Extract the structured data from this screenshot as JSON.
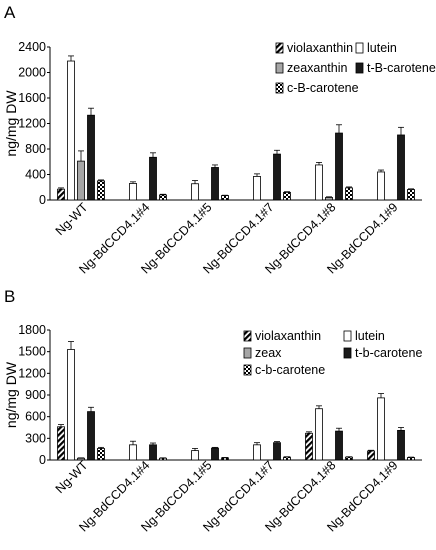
{
  "chart_data": [
    {
      "type": "bar",
      "panel_label": "A",
      "ylabel": "ng/mg DW",
      "ylim": [
        0,
        2400
      ],
      "yticks": [
        "0",
        "400",
        "800",
        "1200",
        "1600",
        "2000",
        "2400"
      ],
      "categories": [
        "Ng-WT",
        "Ng-BdCCD4.1#4",
        "Ng-BdCCD4.1#5",
        "Ng-BdCCD4.1#7",
        "Ng-BdCCD4.1#8",
        "Ng-BdCCD4.1#9"
      ],
      "legend_position": "top-right",
      "grid": false,
      "series": [
        {
          "name": "violaxanthin",
          "pattern": "hatch",
          "values": [
            170,
            0,
            0,
            0,
            0,
            0
          ],
          "errors": [
            20,
            0,
            0,
            0,
            0,
            0
          ]
        },
        {
          "name": "lutein",
          "pattern": "white",
          "values": [
            2180,
            260,
            255,
            370,
            550,
            440
          ],
          "errors": [
            80,
            25,
            50,
            40,
            40,
            30
          ]
        },
        {
          "name": "zeaxanthin",
          "pattern": "gray",
          "values": [
            610,
            0,
            0,
            0,
            40,
            0
          ],
          "errors": [
            160,
            0,
            0,
            0,
            10,
            0
          ]
        },
        {
          "name": "t-B-carotene",
          "pattern": "black",
          "values": [
            1330,
            670,
            510,
            720,
            1050,
            1020
          ],
          "errors": [
            110,
            70,
            40,
            60,
            130,
            120
          ]
        },
        {
          "name": "c-B-carotene",
          "pattern": "check",
          "values": [
            300,
            80,
            70,
            120,
            190,
            165
          ],
          "errors": [
            15,
            10,
            5,
            10,
            15,
            10
          ]
        }
      ]
    },
    {
      "type": "bar",
      "panel_label": "B",
      "ylabel": "ng/mg DW",
      "ylim": [
        0,
        1800
      ],
      "yticks": [
        "0",
        "300",
        "600",
        "900",
        "1200",
        "1500",
        "1800"
      ],
      "categories": [
        "Ng-WT",
        "Ng-BdCCD4.1#4",
        "Ng-BdCCD4.1#5",
        "Ng-BdCCD4.1#7",
        "Ng-BdCCD4.1#8",
        "Ng-BdCCD4.1#9"
      ],
      "legend_position": "top-right",
      "grid": false,
      "series": [
        {
          "name": "violaxanthin",
          "pattern": "hatch",
          "values": [
            460,
            0,
            0,
            0,
            370,
            125
          ],
          "errors": [
            30,
            0,
            0,
            0,
            20,
            10
          ]
        },
        {
          "name": "lutein",
          "pattern": "white",
          "values": [
            1530,
            210,
            130,
            210,
            710,
            860
          ],
          "errors": [
            110,
            50,
            30,
            30,
            40,
            60
          ]
        },
        {
          "name": "zeax",
          "pattern": "gray",
          "values": [
            25,
            0,
            0,
            0,
            0,
            0
          ],
          "errors": [
            5,
            0,
            0,
            0,
            0,
            0
          ]
        },
        {
          "name": "t-b-carotene",
          "pattern": "black",
          "values": [
            670,
            210,
            165,
            240,
            400,
            410
          ],
          "errors": [
            60,
            25,
            10,
            15,
            40,
            40
          ]
        },
        {
          "name": "c-b-carotene",
          "pattern": "check",
          "values": [
            160,
            25,
            30,
            40,
            40,
            35
          ],
          "errors": [
            15,
            5,
            5,
            5,
            5,
            5
          ]
        }
      ]
    }
  ]
}
